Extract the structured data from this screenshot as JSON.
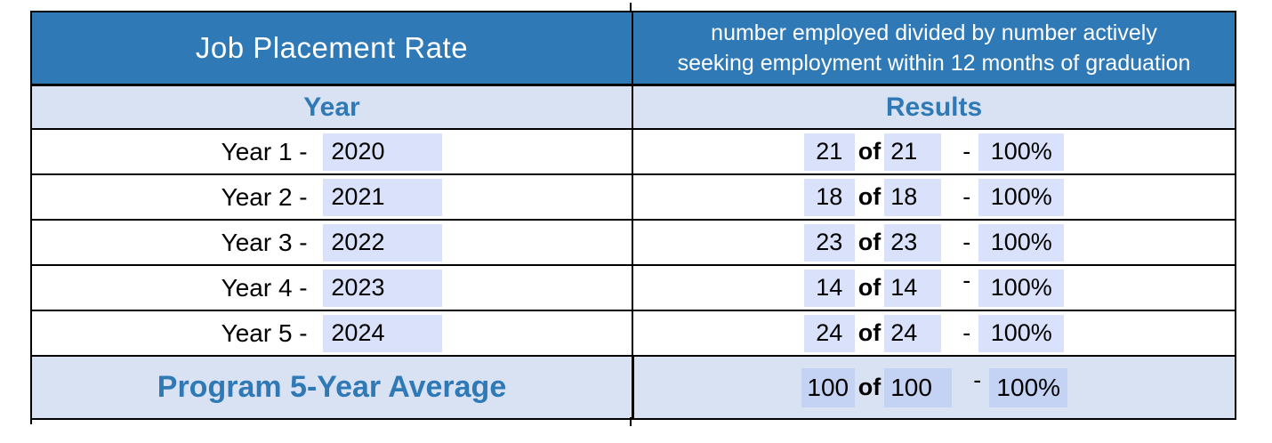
{
  "colors": {
    "accent_blue": "#2E79B6",
    "header_text": "#FFFFFF",
    "band_bg": "#D9E2F3",
    "field_highlight": "#DCE3FA",
    "border": "#000000",
    "body_text": "#000000"
  },
  "table": {
    "title": "Job Placement Rate",
    "definition_lines": [
      "number employed divided by number actively",
      "seeking employment within 12 months of graduation"
    ],
    "columns": {
      "left": "Year",
      "right": "Results"
    },
    "of_label": "of",
    "dash": "-",
    "rows": [
      {
        "label": "Year 1 - ",
        "year": "2020",
        "employed": "21",
        "seeking": "21",
        "rate": "100%"
      },
      {
        "label": "Year 2 - ",
        "year": "2021",
        "employed": "18",
        "seeking": "18",
        "rate": "100%"
      },
      {
        "label": "Year 3 - ",
        "year": "2022",
        "employed": "23",
        "seeking": "23",
        "rate": "100%"
      },
      {
        "label": "Year 4 - ",
        "year": "2023",
        "employed": "14",
        "seeking": "14",
        "rate": "100%"
      },
      {
        "label": "Year 5 - ",
        "year": "2024",
        "employed": "24",
        "seeking": "24",
        "rate": "100%"
      }
    ],
    "footer": {
      "label": "Program 5-Year Average",
      "employed": "100",
      "seeking": "100",
      "rate": "100%"
    }
  }
}
